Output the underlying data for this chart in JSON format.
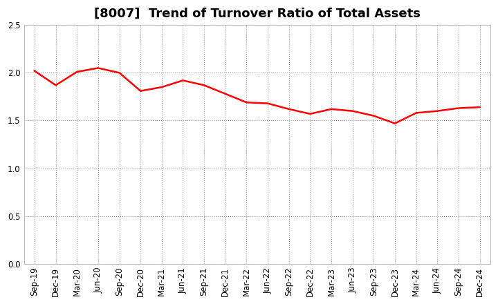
{
  "title": "[8007]  Trend of Turnover Ratio of Total Assets",
  "x_labels": [
    "Sep-19",
    "Dec-19",
    "Mar-20",
    "Jun-20",
    "Sep-20",
    "Dec-20",
    "Mar-21",
    "Jun-21",
    "Sep-21",
    "Dec-21",
    "Mar-22",
    "Jun-22",
    "Sep-22",
    "Dec-22",
    "Mar-23",
    "Jun-23",
    "Sep-23",
    "Dec-23",
    "Mar-24",
    "Jun-24",
    "Sep-24",
    "Dec-24"
  ],
  "values": [
    2.02,
    1.87,
    2.01,
    2.05,
    2.0,
    1.81,
    1.85,
    1.92,
    1.87,
    1.78,
    1.69,
    1.68,
    1.62,
    1.57,
    1.62,
    1.6,
    1.55,
    1.47,
    1.58,
    1.6,
    1.63,
    1.64
  ],
  "ylim": [
    0.0,
    2.5
  ],
  "yticks": [
    0.0,
    0.5,
    1.0,
    1.5,
    2.0,
    2.5
  ],
  "line_color": "#ff0000",
  "line_width": 1.8,
  "bg_color": "#ffffff",
  "plot_bg_color": "#ffffff",
  "grid_color": "#999999",
  "title_fontsize": 13,
  "tick_fontsize": 8.5
}
